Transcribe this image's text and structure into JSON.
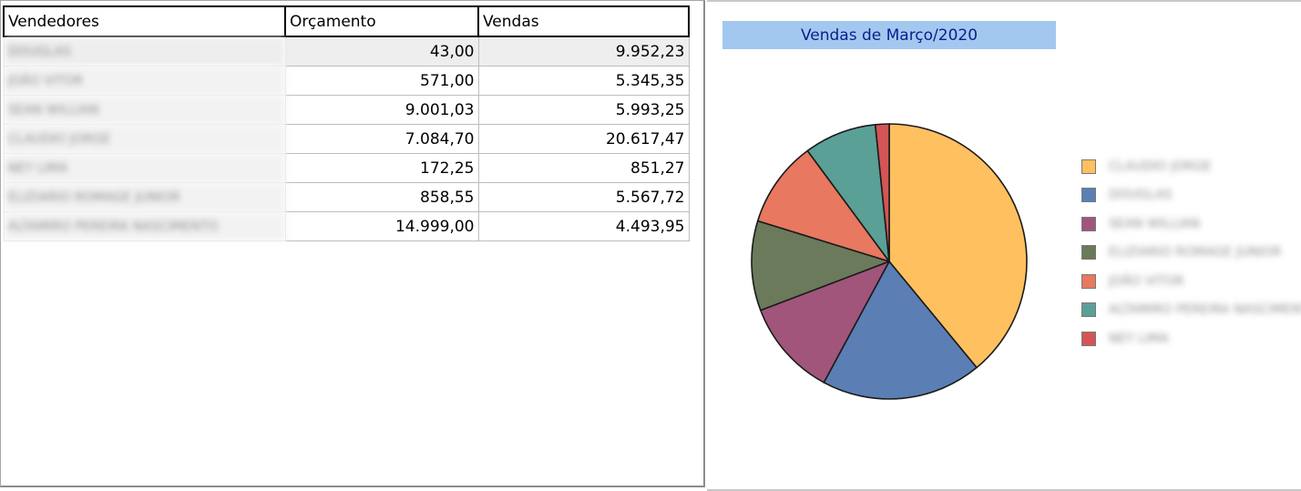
{
  "table": {
    "headers": [
      "Vendedores",
      "Orçamento",
      "Vendas"
    ],
    "rows": [
      {
        "vendedor": "DOUGLAS",
        "orcamento": "43,00",
        "vendas": "9.952,23"
      },
      {
        "vendedor": "JOÃO VITOR",
        "orcamento": "571,00",
        "vendas": "5.345,35"
      },
      {
        "vendedor": "SEAN WILLIAN",
        "orcamento": "9.001,03",
        "vendas": "5.993,25"
      },
      {
        "vendedor": "CLAUDIO JORGE",
        "orcamento": "7.084,70",
        "vendas": "20.617,47"
      },
      {
        "vendedor": "NEY LIMA",
        "orcamento": "172,25",
        "vendas": "851,27"
      },
      {
        "vendedor": "ELIZIARIO ROMAGE JUNIOR",
        "orcamento": "858,55",
        "vendas": "5.567,72"
      },
      {
        "vendedor": "ALTAMIRO PEREIRA NASCIMENTO",
        "orcamento": "14.999,00",
        "vendas": "4.493,95"
      }
    ]
  },
  "chart_data": {
    "type": "pie",
    "title": "Vendas de Março/2020",
    "legend_position": "right",
    "slices": [
      {
        "label": "CLAUDIO JORGE",
        "value": 20617.47,
        "color": "#ffc060"
      },
      {
        "label": "DOUGLAS",
        "value": 9952.23,
        "color": "#5b7fb4"
      },
      {
        "label": "SEAN WILLIAN",
        "value": 5993.25,
        "color": "#a1557a"
      },
      {
        "label": "ELIZIARIO ROMAGE JUNIOR",
        "value": 5567.72,
        "color": "#6a7a5a"
      },
      {
        "label": "JOÃO VITOR",
        "value": 5345.35,
        "color": "#e87860"
      },
      {
        "label": "ALTAMIRO PEREIRA NASCIMENTO",
        "value": 4493.95,
        "color": "#5aa096"
      },
      {
        "label": "NEY LIMA",
        "value": 851.27,
        "color": "#d35555"
      }
    ]
  }
}
